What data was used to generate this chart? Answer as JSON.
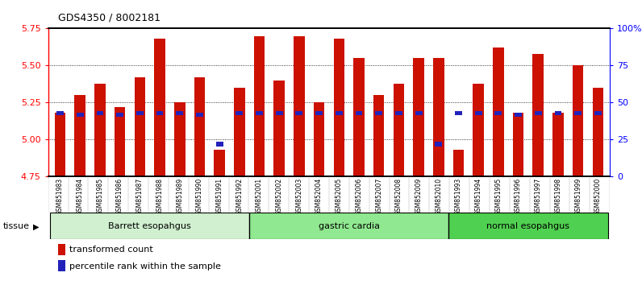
{
  "title": "GDS4350 / 8002181",
  "samples": [
    "GSM851983",
    "GSM851984",
    "GSM851985",
    "GSM851986",
    "GSM851987",
    "GSM851988",
    "GSM851989",
    "GSM851990",
    "GSM851991",
    "GSM851992",
    "GSM852001",
    "GSM852002",
    "GSM852003",
    "GSM852004",
    "GSM852005",
    "GSM852006",
    "GSM852007",
    "GSM852008",
    "GSM852009",
    "GSM852010",
    "GSM851993",
    "GSM851994",
    "GSM851995",
    "GSM851996",
    "GSM851997",
    "GSM851998",
    "GSM851999",
    "GSM852000"
  ],
  "red_values": [
    5.18,
    5.3,
    5.38,
    5.22,
    5.42,
    5.68,
    5.25,
    5.42,
    4.93,
    5.35,
    5.7,
    5.4,
    5.7,
    5.25,
    5.68,
    5.55,
    5.3,
    5.38,
    5.55,
    5.55,
    4.93,
    5.38,
    5.62,
    5.18,
    5.58,
    5.18,
    5.5,
    5.35
  ],
  "blue_percentile": [
    43,
    42,
    43,
    42,
    43,
    43,
    43,
    42,
    22,
    43,
    43,
    43,
    43,
    43,
    43,
    43,
    43,
    43,
    43,
    22,
    43,
    43,
    43,
    42,
    43,
    43,
    43,
    43
  ],
  "groups": [
    {
      "label": "Barrett esopahgus",
      "start": 0,
      "end": 10,
      "color": "#d0f0d0"
    },
    {
      "label": "gastric cardia",
      "start": 10,
      "end": 20,
      "color": "#90e890"
    },
    {
      "label": "normal esopahgus",
      "start": 20,
      "end": 28,
      "color": "#50d050"
    }
  ],
  "ymin": 4.75,
  "ymax": 5.75,
  "yticks": [
    4.75,
    5.0,
    5.25,
    5.5,
    5.75
  ],
  "right_yticks": [
    0,
    25,
    50,
    75,
    100
  ],
  "right_yticklabels": [
    "0",
    "25",
    "50",
    "75",
    "100%"
  ],
  "bar_color": "#cc1100",
  "blue_color": "#2222bb",
  "bar_width": 0.55,
  "legend_items": [
    {
      "label": "transformed count",
      "color": "#cc1100"
    },
    {
      "label": "percentile rank within the sample",
      "color": "#2222bb"
    }
  ],
  "tissue_label": "tissue"
}
